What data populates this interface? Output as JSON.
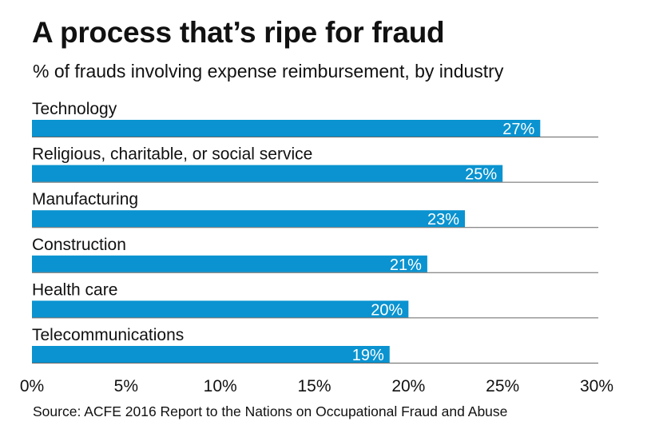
{
  "title": "A process that’s ripe for fraud",
  "subtitle": "% of frauds involving expense reimbursement, by industry",
  "source": "Source: ACFE 2016 Report to the Nations on Occupational Fraud and Abuse",
  "colors": {
    "bar": "#0a93d0",
    "separator": "#666666",
    "text": "#111111"
  },
  "chart_data": {
    "type": "bar",
    "orientation": "horizontal",
    "categories": [
      "Technology",
      "Religious, charitable, or social service",
      "Manufacturing",
      "Construction",
      "Health care",
      "Telecommunications"
    ],
    "values": [
      27,
      25,
      23,
      21,
      20,
      19
    ],
    "value_labels": [
      "27%",
      "25%",
      "23%",
      "21%",
      "20%",
      "19%"
    ],
    "xlim": [
      0,
      30
    ],
    "xticks": [
      0,
      5,
      10,
      15,
      20,
      25,
      30
    ],
    "xtick_labels": [
      "0%",
      "5%",
      "10%",
      "15%",
      "20%",
      "25%",
      "30%"
    ],
    "grid": false,
    "legend": "none"
  }
}
